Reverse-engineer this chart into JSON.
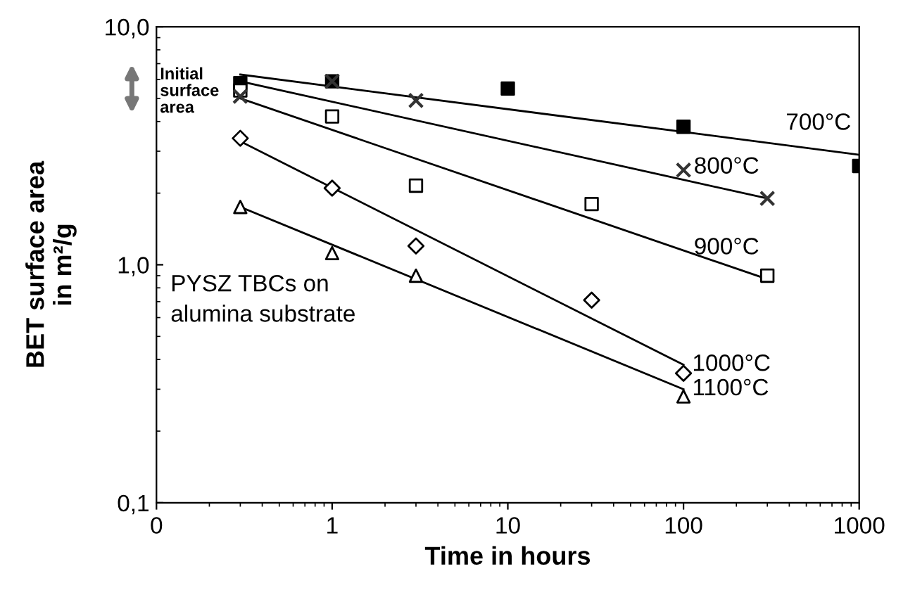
{
  "chart_data": {
    "type": "scatter",
    "xlabel": "Time in hours",
    "ylabel": "BET surface area\nin m²/g",
    "log": "xy",
    "grid": false,
    "legend": false,
    "xlim": [
      0.1,
      1000
    ],
    "ylim": [
      0.1,
      10
    ],
    "xticks": [
      {
        "value": 0.1,
        "label": "0"
      },
      1,
      10,
      100,
      1000
    ],
    "yticks": [
      {
        "value": 0.1,
        "label": "0,1"
      },
      {
        "value": 1,
        "label": "1,0"
      },
      {
        "value": 10,
        "label": "10,0"
      }
    ],
    "series": [
      {
        "marker": "square",
        "color": "#000000",
        "x": [
          0.3,
          1,
          10,
          100,
          1000
        ],
        "values": [
          5.8,
          5.9,
          5.5,
          3.8,
          2.6
        ]
      },
      {
        "marker": "cross",
        "color": "#333333",
        "x": [
          0.3,
          1,
          3,
          100,
          300
        ],
        "values": [
          5.1,
          5.9,
          4.9,
          2.5,
          1.9
        ]
      },
      {
        "marker": "square",
        "color": "#ffffff",
        "x": [
          0.3,
          1,
          3,
          30,
          300
        ],
        "values": [
          5.4,
          4.2,
          2.15,
          1.8,
          0.9
        ]
      },
      {
        "marker": "diamond",
        "color": "#ffffff",
        "x": [
          0.3,
          1,
          3,
          30,
          100
        ],
        "values": [
          3.4,
          2.1,
          1.2,
          0.71,
          0.35
        ]
      },
      {
        "marker": "triangle",
        "color": "#ffffff",
        "x": [
          0.3,
          1,
          3,
          100
        ],
        "values": [
          1.75,
          1.12,
          0.9,
          0.28
        ]
      },
      {
        "type": "line",
        "name": "700°C",
        "color": "#000000",
        "x": [
          0.3,
          1000
        ],
        "values": [
          6.3,
          2.9
        ]
      },
      {
        "type": "line",
        "name": "800°C",
        "color": "#000000",
        "x": [
          0.3,
          300
        ],
        "values": [
          5.9,
          1.9
        ]
      },
      {
        "type": "line",
        "name": "900°C",
        "color": "#000000",
        "x": [
          0.3,
          300
        ],
        "values": [
          5.0,
          0.87
        ]
      },
      {
        "type": "line",
        "name": "1000°C",
        "color": "#000000",
        "x": [
          0.3,
          100
        ],
        "values": [
          3.3,
          0.38
        ]
      },
      {
        "type": "line",
        "name": "1100°C",
        "color": "#000000",
        "x": [
          0.3,
          100
        ],
        "values": [
          1.75,
          0.3
        ]
      }
    ],
    "annotations": [
      "PYSZ TBCs on\nalumina substrate",
      "Initial\nsurface\narea"
    ]
  }
}
